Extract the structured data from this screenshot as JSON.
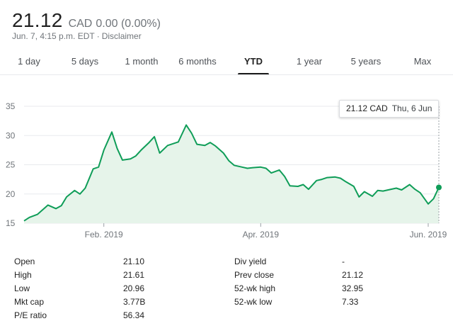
{
  "quote": {
    "price": "21.12",
    "currency": "CAD",
    "change": "0.00 (0.00%)",
    "timestamp": "Jun. 7, 4:15 p.m. EDT",
    "separator": "·",
    "disclaimer": "Disclaimer"
  },
  "tabs": [
    {
      "label": "1 day",
      "active": false
    },
    {
      "label": "5 days",
      "active": false
    },
    {
      "label": "1 month",
      "active": false
    },
    {
      "label": "6 months",
      "active": false
    },
    {
      "label": "YTD",
      "active": true
    },
    {
      "label": "1 year",
      "active": false
    },
    {
      "label": "5 years",
      "active": false
    },
    {
      "label": "Max",
      "active": false
    }
  ],
  "tooltip": {
    "value": "21.12 CAD",
    "date": "Thu, 6 Jun"
  },
  "colors": {
    "line": "#0f9d58",
    "fill": "#e6f4ea",
    "grid": "#e8eaed"
  },
  "chart_data": {
    "type": "area",
    "x_labels": [
      "Feb. 2019",
      "Apr. 2019",
      "Jun. 2019"
    ],
    "y_ticks": [
      15,
      20,
      25,
      30,
      35
    ],
    "ylim": [
      15,
      35
    ],
    "x_range": [
      "2019-01-02",
      "2019-06-07"
    ],
    "grid": true,
    "series": [
      {
        "x": [
          "2019-01-02",
          "2019-01-04",
          "2019-01-07",
          "2019-01-09",
          "2019-01-11",
          "2019-01-14",
          "2019-01-16",
          "2019-01-18",
          "2019-01-21",
          "2019-01-23",
          "2019-01-25",
          "2019-01-28",
          "2019-01-30",
          "2019-02-01",
          "2019-02-04",
          "2019-02-06",
          "2019-02-08",
          "2019-02-11",
          "2019-02-13",
          "2019-02-15",
          "2019-02-18",
          "2019-02-20",
          "2019-02-22",
          "2019-02-25",
          "2019-02-27",
          "2019-03-01",
          "2019-03-04",
          "2019-03-06",
          "2019-03-08",
          "2019-03-11",
          "2019-03-13",
          "2019-03-15",
          "2019-03-18",
          "2019-03-20",
          "2019-03-22",
          "2019-03-25",
          "2019-03-27",
          "2019-03-29",
          "2019-04-01",
          "2019-04-03",
          "2019-04-05",
          "2019-04-08",
          "2019-04-10",
          "2019-04-12",
          "2019-04-15",
          "2019-04-17",
          "2019-04-19",
          "2019-04-22",
          "2019-04-24",
          "2019-04-26",
          "2019-04-29",
          "2019-05-01",
          "2019-05-03",
          "2019-05-06",
          "2019-05-08",
          "2019-05-10",
          "2019-05-13",
          "2019-05-15",
          "2019-05-17",
          "2019-05-20",
          "2019-05-22",
          "2019-05-24",
          "2019-05-27",
          "2019-05-29",
          "2019-05-31",
          "2019-06-03",
          "2019-06-05",
          "2019-06-07"
        ],
        "values": [
          15.4,
          16.0,
          16.5,
          17.3,
          18.1,
          17.5,
          18.0,
          19.5,
          20.6,
          20.0,
          21.0,
          24.3,
          24.6,
          27.5,
          30.6,
          27.8,
          25.8,
          26.0,
          26.5,
          27.5,
          28.8,
          29.8,
          27.0,
          28.3,
          28.6,
          28.9,
          31.8,
          30.4,
          28.5,
          28.3,
          28.8,
          28.2,
          27.0,
          25.7,
          24.9,
          24.6,
          24.4,
          24.5,
          24.6,
          24.4,
          23.6,
          24.1,
          23.0,
          21.4,
          21.3,
          21.6,
          20.8,
          22.3,
          22.5,
          22.8,
          22.9,
          22.7,
          22.1,
          21.3,
          19.5,
          20.4,
          19.6,
          20.6,
          20.5,
          20.8,
          21.0,
          20.7,
          21.6,
          20.8,
          20.2,
          18.3,
          19.2,
          21.12
        ]
      }
    ]
  },
  "stats": {
    "left": [
      {
        "label": "Open",
        "value": "21.10"
      },
      {
        "label": "High",
        "value": "21.61"
      },
      {
        "label": "Low",
        "value": "20.96"
      },
      {
        "label": "Mkt cap",
        "value": "3.77B"
      },
      {
        "label": "P/E ratio",
        "value": "56.34"
      }
    ],
    "right": [
      {
        "label": "Div yield",
        "value": "-"
      },
      {
        "label": "Prev close",
        "value": "21.12"
      },
      {
        "label": "52-wk high",
        "value": "32.95"
      },
      {
        "label": "52-wk low",
        "value": "7.33"
      }
    ]
  }
}
